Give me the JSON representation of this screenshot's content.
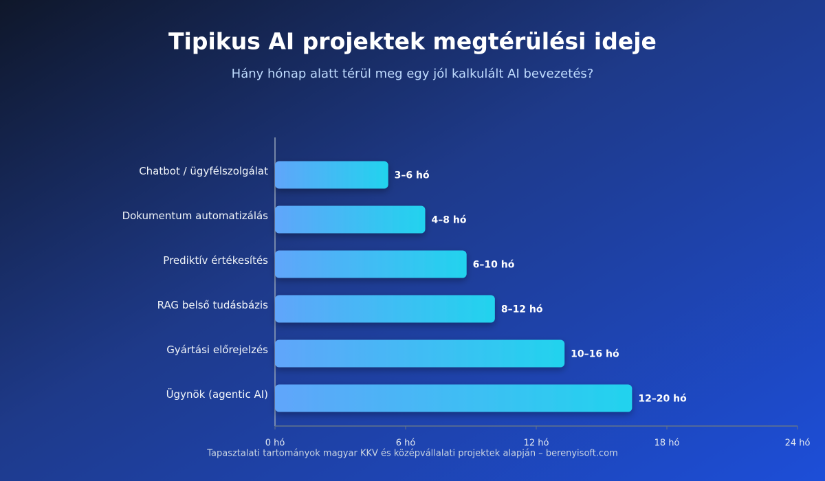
{
  "chart_data": {
    "type": "hbar",
    "title": "Tipikus AI projektek megtérülési ideje",
    "subtitle": "Hány hónap alatt térül meg egy jól kalkulált AI bevezetés?",
    "categories": [
      "Chatbot / ügyfélszolgálat",
      "Dokumentum automatizálás",
      "Prediktív értékesítés",
      "RAG belső tudásbázis",
      "Gyártási előrejelzés",
      "Ügynök (agentic AI)"
    ],
    "values": [
      5.2,
      6.9,
      8.8,
      10.1,
      13.3,
      16.4
    ],
    "value_labels": [
      "3–6 hó",
      "4–8 hó",
      "6–10 hó",
      "8–12 hó",
      "10–16 hó",
      "12–20 hó"
    ],
    "colors": [
      "#60a5fa",
      "#22d3ee"
    ],
    "xlim": [
      0,
      24
    ],
    "xticks": [
      {
        "value": 0,
        "label": "0 hó"
      },
      {
        "value": 6,
        "label": "6 hó"
      },
      {
        "value": 12,
        "label": "12 hó"
      },
      {
        "value": 18,
        "label": "18 hó"
      },
      {
        "value": 24,
        "label": "24 hó"
      }
    ],
    "footnote": "Tapasztalati tartományok magyar KKV és középvállalati projektek alapján – berenyisoft.com"
  }
}
